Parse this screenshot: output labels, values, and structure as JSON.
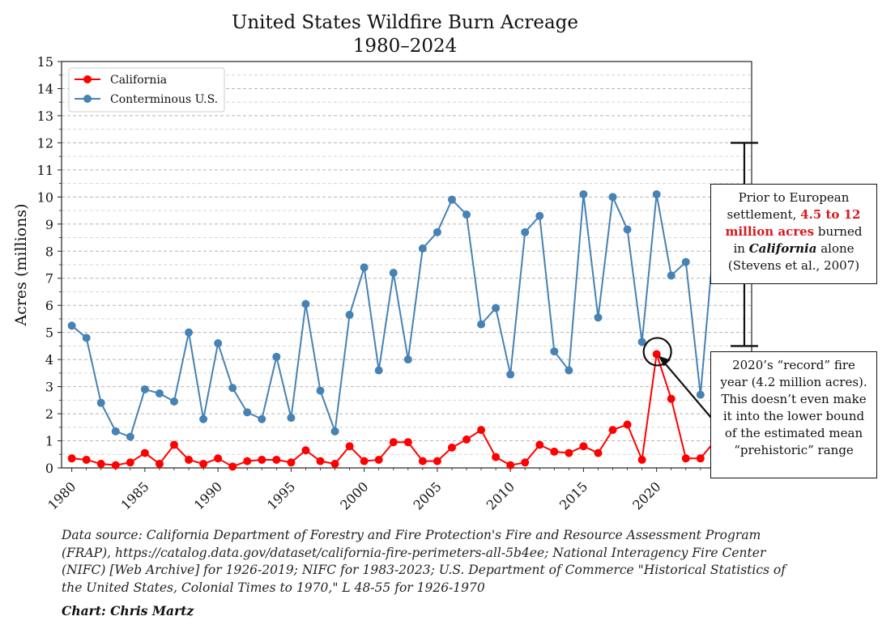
{
  "chart_data": {
    "type": "line",
    "title": "United States Wildfire Burn Acreage",
    "subtitle": "1980–2024",
    "ylabel": "Acres (millions)",
    "xlabel": "",
    "ylim": [
      0,
      15
    ],
    "xlim": [
      1979.3,
      2026.5
    ],
    "y_ticks": [
      0,
      1,
      2,
      3,
      4,
      5,
      6,
      7,
      8,
      9,
      10,
      11,
      12,
      13,
      14,
      15
    ],
    "x_ticks": [
      1980,
      1985,
      1990,
      1995,
      2000,
      2005,
      2010,
      2015,
      2020
    ],
    "grid": "horizontal dashed",
    "legend": "top-left",
    "colors": {
      "California": "#ff0000",
      "Conterminous U.S.": "#4682b4"
    },
    "x": [
      1980,
      1981,
      1982,
      1983,
      1984,
      1985,
      1986,
      1987,
      1988,
      1989,
      1990,
      1991,
      1992,
      1993,
      1994,
      1995,
      1996,
      1997,
      1998,
      1999,
      2000,
      2001,
      2002,
      2003,
      2004,
      2005,
      2006,
      2007,
      2008,
      2009,
      2010,
      2011,
      2012,
      2013,
      2014,
      2015,
      2016,
      2017,
      2018,
      2019,
      2020,
      2021,
      2022,
      2023,
      2024
    ],
    "series": [
      {
        "name": "California",
        "values": [
          0.35,
          0.3,
          0.15,
          0.1,
          0.2,
          0.55,
          0.15,
          0.85,
          0.3,
          0.15,
          0.35,
          0.05,
          0.25,
          0.3,
          0.3,
          0.2,
          0.65,
          0.25,
          0.15,
          0.8,
          0.25,
          0.3,
          0.95,
          0.95,
          0.25,
          0.25,
          0.75,
          1.05,
          1.4,
          0.4,
          0.1,
          0.2,
          0.85,
          0.6,
          0.55,
          0.8,
          0.55,
          1.4,
          1.6,
          0.3,
          4.2,
          2.55,
          0.35,
          0.35,
          1.0
        ]
      },
      {
        "name": "Conterminous U.S.",
        "values": [
          5.25,
          4.8,
          2.4,
          1.35,
          1.15,
          2.9,
          2.75,
          2.45,
          5.0,
          1.8,
          4.6,
          2.95,
          2.05,
          1.8,
          4.1,
          1.85,
          6.05,
          2.85,
          1.35,
          5.65,
          7.4,
          3.6,
          7.2,
          4.0,
          8.1,
          8.7,
          9.9,
          9.35,
          5.3,
          5.9,
          3.45,
          8.7,
          9.3,
          4.3,
          3.6,
          10.1,
          5.55,
          10.0,
          8.8,
          4.65,
          10.1,
          7.1,
          7.6,
          2.7,
          8.9
        ]
      }
    ],
    "annotations": {
      "range_bar": {
        "x": 2026,
        "low": 4.5,
        "high": 12
      },
      "highlight_point": {
        "x": 2020,
        "y": 4.2
      }
    }
  },
  "text": {
    "source": "Data source: California Department of Forestry and Fire Protection's Fire and Resource Assessment Program (FRAP), https://catalog.data.gov/dataset/california-fire-perimeters-all-5b4ee; National Interagency Fire Center (NIFC) [Web Archive] for 1926-2019; NIFC for 1983-2023; U.S. Department of Commerce \"Historical Statistics of the United States, Colonial Times to 1970,\" L 48-55 for 1926-1970",
    "credit": "Chart: Chris Martz",
    "box1": {
      "p1": "Prior to European settlement, ",
      "p2": "4.5 to 12 million acres",
      "p3": " burned in ",
      "p4": "California",
      "p5": " alone (Stevens et al., 2007)"
    },
    "box2": "2020’s “record” fire year (4.2 million acres). This doesn’t even make it into the lower bound of the estimated mean “prehistoric” range"
  }
}
